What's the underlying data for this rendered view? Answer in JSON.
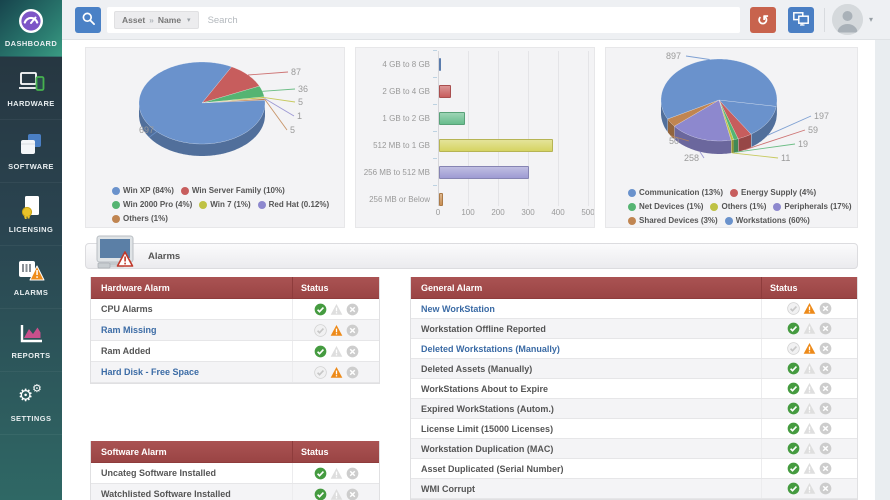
{
  "sidebar": {
    "items": [
      {
        "label": "DASHBOARD",
        "active": true
      },
      {
        "label": "HARDWARE",
        "active": false
      },
      {
        "label": "SOFTWARE",
        "active": false
      },
      {
        "label": "LICENSING",
        "active": false
      },
      {
        "label": "ALARMS",
        "active": false
      },
      {
        "label": "REPORTS",
        "active": false
      },
      {
        "label": "SETTINGS",
        "active": false
      }
    ]
  },
  "topbar": {
    "filter_primary": "Asset",
    "filter_separator": "»",
    "filter_secondary": "Name",
    "search_placeholder": "Search"
  },
  "sections": {
    "alarms_title": "Alarms"
  },
  "chart_data": [
    {
      "type": "pie",
      "name": "os-distribution",
      "start_angle": 62,
      "slices": [
        {
          "label": "Win Server Family",
          "pct": "10%",
          "value": 87,
          "color": "#c75d5d",
          "lx": 205,
          "ly": 24
        },
        {
          "label": "Win 2000 Pro",
          "pct": "4%",
          "value": 36,
          "color": "#55b472",
          "lx": 212,
          "ly": 41
        },
        {
          "label": "Win 7",
          "pct": "1%",
          "value": 5,
          "color": "#bfc244",
          "lx": 212,
          "ly": 54
        },
        {
          "label": "Red Hat",
          "pct": "0.12%",
          "value": 1,
          "color": "#8d88ce",
          "lx": 211,
          "ly": 68
        },
        {
          "label": "Others",
          "pct": "1%",
          "value": 5,
          "color": "#c08551",
          "lx": 204,
          "ly": 82
        },
        {
          "label": "Win XP",
          "pct": "84%",
          "value": 697,
          "color": "#6a92cc",
          "lx": 53,
          "ly": 82
        }
      ],
      "legend_order": [
        5,
        0,
        1,
        2,
        3,
        4
      ]
    },
    {
      "type": "bar",
      "name": "memory-distribution",
      "categories": [
        "4 GB to 8 GB",
        "2 GB to 4 GB",
        "1 GB to 2 GB",
        "512 MB to 1 GB",
        "256 MB to 512 MB",
        "256 MB or Below"
      ],
      "values": [
        2,
        40,
        85,
        380,
        300,
        12
      ],
      "colors": [
        "#6a92cc",
        "#c75d5d",
        "#68bd8d",
        "#d6d463",
        "#9e9bd3",
        "#c98f53"
      ],
      "xticks": [
        0,
        100,
        200,
        300,
        400,
        500
      ],
      "xlim": [
        0,
        500
      ]
    },
    {
      "type": "pie",
      "name": "asset-distribution",
      "start_angle": -9,
      "slices": [
        {
          "label": "Communication",
          "pct": "13%",
          "value": 197,
          "color": "#6a92cc",
          "lx": 208,
          "ly": 68
        },
        {
          "label": "Energy Supply",
          "pct": "4%",
          "value": 59,
          "color": "#c75d5d",
          "lx": 202,
          "ly": 82
        },
        {
          "label": "Net Devices",
          "pct": "1%",
          "value": 19,
          "color": "#55b472",
          "lx": 192,
          "ly": 96
        },
        {
          "label": "Others",
          "pct": "1%",
          "value": 11,
          "color": "#bfc244",
          "lx": 175,
          "ly": 110
        },
        {
          "label": "Peripherals",
          "pct": "17%",
          "value": 258,
          "color": "#8d88ce",
          "lx": 78,
          "ly": 110
        },
        {
          "label": "Shared Devices",
          "pct": "3%",
          "value": 50,
          "color": "#c08551",
          "lx": 63,
          "ly": 93
        },
        {
          "label": "Workstations",
          "pct": "60%",
          "value": 897,
          "color": "#6a92cc",
          "lx": 60,
          "ly": 8
        }
      ],
      "legend_order": [
        0,
        1,
        2,
        3,
        4,
        5,
        6
      ]
    }
  ],
  "alarm_tables": {
    "hardware": {
      "title": "Hardware Alarm",
      "status_label": "Status",
      "rows": [
        {
          "label": "CPU Alarms",
          "link": false,
          "state": "ok"
        },
        {
          "label": "Ram Missing",
          "link": true,
          "state": "warn"
        },
        {
          "label": "Ram Added",
          "link": false,
          "state": "ok"
        },
        {
          "label": "Hard Disk - Free Space",
          "link": true,
          "state": "warn"
        }
      ]
    },
    "software": {
      "title": "Software Alarm",
      "status_label": "Status",
      "rows": [
        {
          "label": "Uncateg Software Installed",
          "link": false,
          "state": "ok"
        },
        {
          "label": "Watchlisted Software Installed",
          "link": false,
          "state": "ok"
        }
      ]
    },
    "general": {
      "title": "General Alarm",
      "status_label": "Status",
      "rows": [
        {
          "label": "New WorkStation",
          "link": true,
          "state": "warn"
        },
        {
          "label": "Workstation Offline Reported",
          "link": false,
          "state": "ok"
        },
        {
          "label": "Deleted Workstations (Manually)",
          "link": true,
          "state": "warn"
        },
        {
          "label": "Deleted Assets (Manually)",
          "link": false,
          "state": "ok"
        },
        {
          "label": "WorkStations About to Expire",
          "link": false,
          "state": "ok"
        },
        {
          "label": "Expired WorkStations (Autom.)",
          "link": false,
          "state": "ok"
        },
        {
          "label": "License Limit (15000 Licenses)",
          "link": false,
          "state": "ok"
        },
        {
          "label": "Workstation Duplication (MAC)",
          "link": false,
          "state": "ok"
        },
        {
          "label": "Asset Duplicated (Serial Number)",
          "link": false,
          "state": "ok"
        },
        {
          "label": "WMI Corrupt",
          "link": false,
          "state": "ok"
        }
      ]
    }
  },
  "colors": {
    "status_ok": "#459b40",
    "status_warn": "#ed8a19",
    "status_off": "#cdcdcd",
    "table_header": "#a04a4a",
    "link": "#3b6ba5",
    "accent_blue": "#4a81c6",
    "accent_red": "#c8634d"
  }
}
